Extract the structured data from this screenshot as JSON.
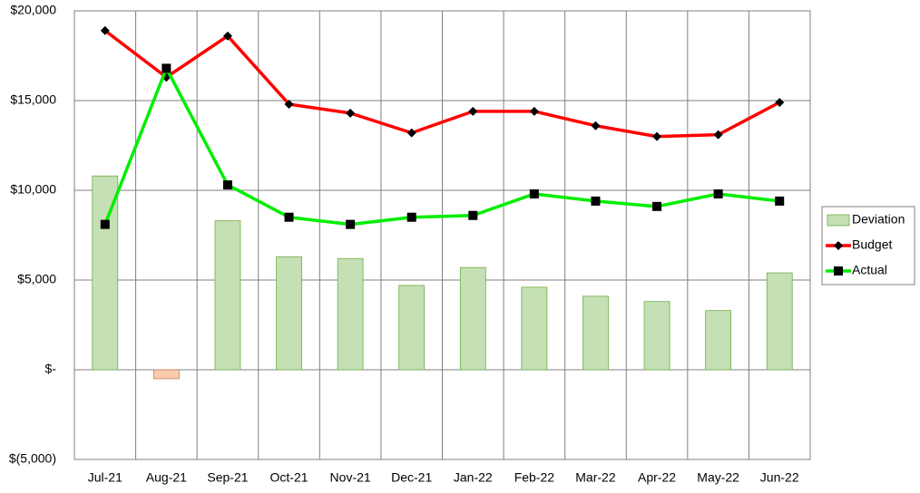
{
  "chart_data": {
    "type": "combo",
    "categories": [
      "Jul-21",
      "Aug-21",
      "Sep-21",
      "Oct-21",
      "Nov-21",
      "Dec-21",
      "Jan-22",
      "Feb-22",
      "Mar-22",
      "Apr-22",
      "May-22",
      "Jun-22"
    ],
    "series": [
      {
        "name": "Deviation",
        "type": "bar",
        "color": "#c5e0b4",
        "stroke": "#70ad47",
        "negative_color": "#f8cbad",
        "values": [
          10800,
          -500,
          8300,
          6300,
          6200,
          4700,
          5700,
          4600,
          4100,
          3800,
          3300,
          5400
        ]
      },
      {
        "name": "Budget",
        "type": "line",
        "color": "#ff0000",
        "marker": "diamond",
        "values": [
          18900,
          16300,
          18600,
          14800,
          14300,
          13200,
          14400,
          14400,
          13600,
          13000,
          13100,
          14900
        ]
      },
      {
        "name": "Actual",
        "type": "line",
        "color": "#00ee00",
        "marker": "square",
        "values": [
          8100,
          16800,
          10300,
          8500,
          8100,
          8500,
          8600,
          9800,
          9400,
          9100,
          9800,
          9400
        ]
      }
    ],
    "ylim": [
      -5000,
      20000
    ],
    "yticks": [
      {
        "value": -5000,
        "label": "$(5,000)"
      },
      {
        "value": 0,
        "label": "$-"
      },
      {
        "value": 5000,
        "label": "$5,000"
      },
      {
        "value": 10000,
        "label": "$10,000"
      },
      {
        "value": 15000,
        "label": "$15,000"
      },
      {
        "value": 20000,
        "label": "$20,000"
      }
    ],
    "grid": true,
    "legend": "right"
  }
}
